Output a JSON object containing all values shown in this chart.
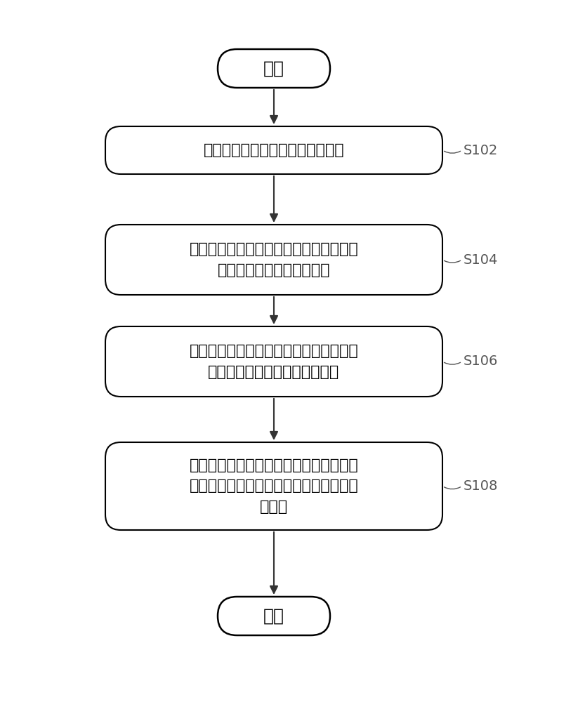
{
  "bg_color": "#ffffff",
  "box_color": "#ffffff",
  "box_edge_color": "#000000",
  "arrow_color": "#333333",
  "text_color": "#000000",
  "label_color": "#555555",
  "start_end_text": [
    "开始",
    "结束"
  ],
  "box_texts": [
    "获取配电网的历史配电的收益数据",
    "根据历史配电的收益数据确定出配电网中\n各电压等级的配电准许收入",
    "根据第一分配因子和目标配电准许收入确\n定目标用电用户的配电准许收入",
    "根据目标用电用户的用电量和目标用电用\n户的配电准许收入确定目标用电用户的配\n电价格"
  ],
  "step_labels": [
    "S102",
    "S104",
    "S106",
    "S108"
  ],
  "title_fontsize": 16,
  "label_fontsize": 14,
  "figsize": [
    8.33,
    10.0
  ]
}
